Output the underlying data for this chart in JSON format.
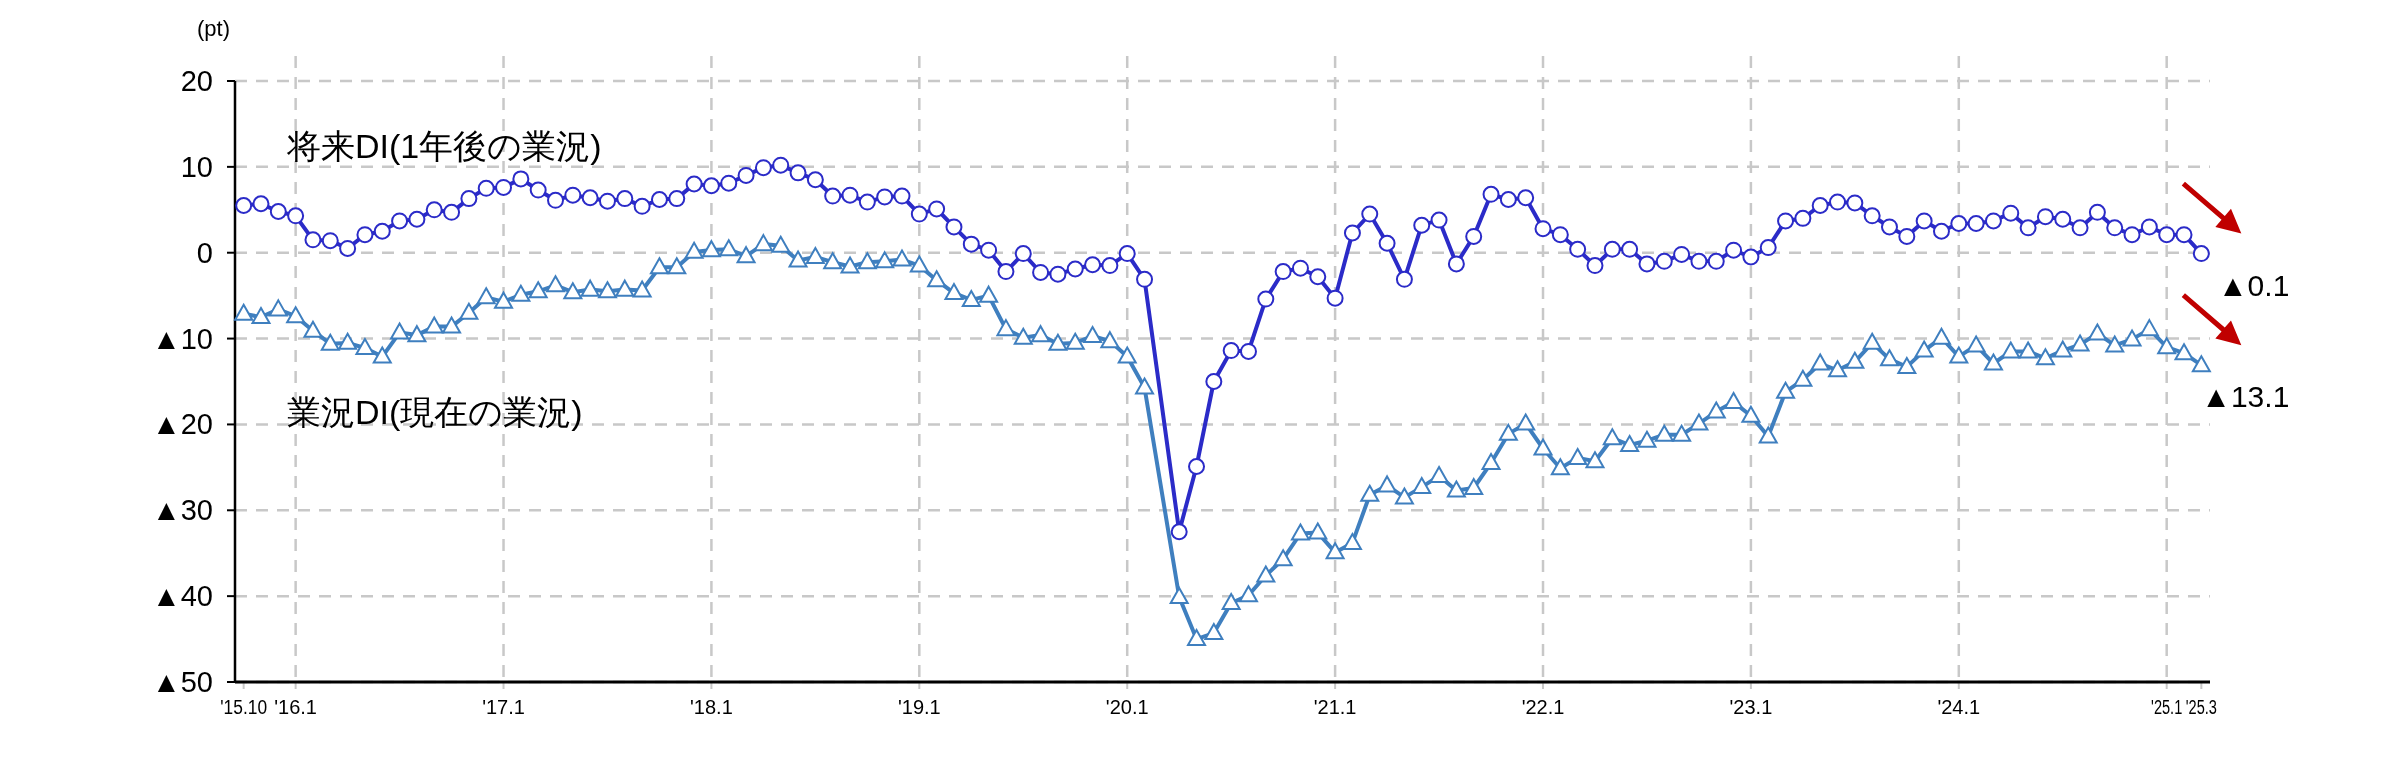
{
  "chart_data": {
    "type": "line",
    "ylabel": "(pt)",
    "x": [
      "2015-10",
      "2015-11",
      "2015-12",
      "2016-01",
      "2016-02",
      "2016-03",
      "2016-04",
      "2016-05",
      "2016-06",
      "2016-07",
      "2016-08",
      "2016-09",
      "2016-10",
      "2016-11",
      "2016-12",
      "2017-01",
      "2017-02",
      "2017-03",
      "2017-04",
      "2017-05",
      "2017-06",
      "2017-07",
      "2017-08",
      "2017-09",
      "2017-10",
      "2017-11",
      "2017-12",
      "2018-01",
      "2018-02",
      "2018-03",
      "2018-04",
      "2018-05",
      "2018-06",
      "2018-07",
      "2018-08",
      "2018-09",
      "2018-10",
      "2018-11",
      "2018-12",
      "2019-01",
      "2019-02",
      "2019-03",
      "2019-04",
      "2019-05",
      "2019-06",
      "2019-07",
      "2019-08",
      "2019-09",
      "2019-10",
      "2019-11",
      "2019-12",
      "2020-01",
      "2020-02",
      "2020-03",
      "2020-04",
      "2020-05",
      "2020-06",
      "2020-07",
      "2020-08",
      "2020-09",
      "2020-10",
      "2020-11",
      "2020-12",
      "2021-01",
      "2021-02",
      "2021-03",
      "2021-04",
      "2021-05",
      "2021-06",
      "2021-07",
      "2021-08",
      "2021-09",
      "2021-10",
      "2021-11",
      "2021-12",
      "2022-01",
      "2022-02",
      "2022-03",
      "2022-04",
      "2022-05",
      "2022-06",
      "2022-07",
      "2022-08",
      "2022-09",
      "2022-10",
      "2022-11",
      "2022-12",
      "2023-01",
      "2023-02",
      "2023-03",
      "2023-04",
      "2023-05",
      "2023-06",
      "2023-07",
      "2023-08",
      "2023-09",
      "2023-10",
      "2023-11",
      "2023-12",
      "2024-01",
      "2024-02",
      "2024-03",
      "2024-04",
      "2024-05",
      "2024-06",
      "2024-07",
      "2024-08",
      "2024-09",
      "2024-10",
      "2024-11",
      "2024-12",
      "2025-01",
      "2025-02",
      "2025-03"
    ],
    "series": [
      {
        "name": "将来DI(1年後の業況)",
        "color": "#2b2bc8",
        "marker": "circle",
        "values": [
          5.5,
          5.7,
          4.8,
          4.3,
          1.5,
          1.4,
          0.5,
          2.1,
          2.5,
          3.7,
          3.9,
          5.0,
          4.7,
          6.3,
          7.5,
          7.6,
          8.6,
          7.3,
          6.1,
          6.7,
          6.4,
          6.0,
          6.3,
          5.4,
          6.2,
          6.3,
          8.0,
          7.8,
          8.1,
          9.0,
          9.9,
          10.2,
          9.3,
          8.5,
          6.6,
          6.7,
          5.9,
          6.5,
          6.6,
          4.5,
          5.1,
          3.0,
          1.0,
          0.3,
          -2.2,
          -0.1,
          -2.3,
          -2.5,
          -1.9,
          -1.4,
          -1.5,
          -0.1,
          -3.1,
          null,
          -32.5,
          -24.9,
          -15.0,
          -11.4,
          -11.5,
          -5.4,
          -2.2,
          -1.8,
          -2.8,
          -5.3,
          2.3,
          4.5,
          1.1,
          -3.1,
          3.2,
          3.8,
          -1.3,
          1.9,
          6.8,
          6.2,
          6.4,
          2.8,
          2.1,
          0.4,
          -1.5,
          0.4,
          0.4,
          -1.3,
          -1.0,
          -0.2,
          -1.0,
          -1.0,
          0.3,
          -0.5,
          0.6,
          3.7,
          4.0,
          5.5,
          5.9,
          5.8,
          4.3,
          3.0,
          1.9,
          3.7,
          2.5,
          3.4,
          3.4,
          3.7,
          4.6,
          2.9,
          4.2,
          3.9,
          2.9,
          4.7,
          2.9,
          2.1,
          3.0,
          2.1,
          2.1,
          -0.1
        ]
      },
      {
        "name": "業況DI(現在の業況)",
        "color": "#3f7fbf",
        "marker": "triangle",
        "values": [
          -7.1,
          -7.5,
          -6.6,
          -7.4,
          -9.1,
          -10.6,
          -10.5,
          -11.1,
          -12.1,
          -9.3,
          -9.6,
          -8.6,
          -8.6,
          -7.0,
          -5.2,
          -5.7,
          -4.9,
          -4.5,
          -3.8,
          -4.6,
          -4.3,
          -4.5,
          -4.3,
          -4.4,
          -1.7,
          -1.7,
          0.1,
          0.3,
          0.4,
          -0.4,
          1.0,
          0.8,
          -0.9,
          -0.5,
          -1.1,
          -1.6,
          -1.1,
          -1.0,
          -0.8,
          -1.5,
          -3.2,
          -4.7,
          -5.5,
          -5.0,
          -8.9,
          -9.9,
          -9.6,
          -10.6,
          -10.5,
          -9.7,
          -10.3,
          -12.1,
          -15.7,
          null,
          -40.1,
          -45.0,
          -44.3,
          -40.8,
          -39.9,
          -37.6,
          -35.7,
          -32.7,
          -32.6,
          -34.9,
          -33.8,
          -28.2,
          -27.1,
          -28.5,
          -27.3,
          -26.0,
          -27.7,
          -27.4,
          -24.5,
          -21.1,
          -19.9,
          -22.8,
          -25.1,
          -23.9,
          -24.3,
          -21.6,
          -22.4,
          -21.9,
          -21.2,
          -21.2,
          -19.9,
          -18.5,
          -17.4,
          -19.0,
          -21.4,
          -16.2,
          -14.8,
          -12.9,
          -13.7,
          -12.7,
          -10.5,
          -12.4,
          -13.3,
          -11.4,
          -9.9,
          -12.1,
          -10.8,
          -12.9,
          -11.5,
          -11.5,
          -12.3,
          -11.4,
          -10.7,
          -9.4,
          -10.8,
          -10.1,
          -8.9,
          -11.0,
          -11.7,
          -13.1
        ]
      }
    ],
    "xlim": [
      "2015-09-16",
      "2025-03-16"
    ],
    "xticks": [
      {
        "value": "2015-10",
        "label": "'15.10"
      },
      {
        "value": "2016-01",
        "label": "'16.1"
      },
      {
        "value": "2017-01",
        "label": "'17.1"
      },
      {
        "value": "2018-01",
        "label": "'18.1"
      },
      {
        "value": "2019-01",
        "label": "'19.1"
      },
      {
        "value": "2020-01",
        "label": "'20.1"
      },
      {
        "value": "2021-01",
        "label": "'21.1"
      },
      {
        "value": "2022-01",
        "label": "'22.1"
      },
      {
        "value": "2023-01",
        "label": "'23.1"
      },
      {
        "value": "2024-01",
        "label": "'24.1"
      },
      {
        "value": "2025-01",
        "label": "'25.1"
      },
      {
        "value": "2025-03",
        "label": "'25.3"
      }
    ],
    "ylim": [
      -50,
      20
    ],
    "yticks": [
      20,
      10,
      0,
      {
        "value": -10,
        "label": "▲10"
      },
      {
        "value": -20,
        "label": "▲20"
      },
      {
        "value": -30,
        "label": "▲30"
      },
      {
        "value": -40,
        "label": "▲40"
      },
      {
        "value": -50,
        "label": "▲50"
      }
    ],
    "grid": true,
    "legend": false,
    "line_style": "solid",
    "annotations": [
      {
        "text": "▲0.1",
        "x": "2025-03",
        "y": -0.1
      },
      {
        "text": "▲13.1",
        "x": "2025-03",
        "y": -13.1
      }
    ]
  }
}
